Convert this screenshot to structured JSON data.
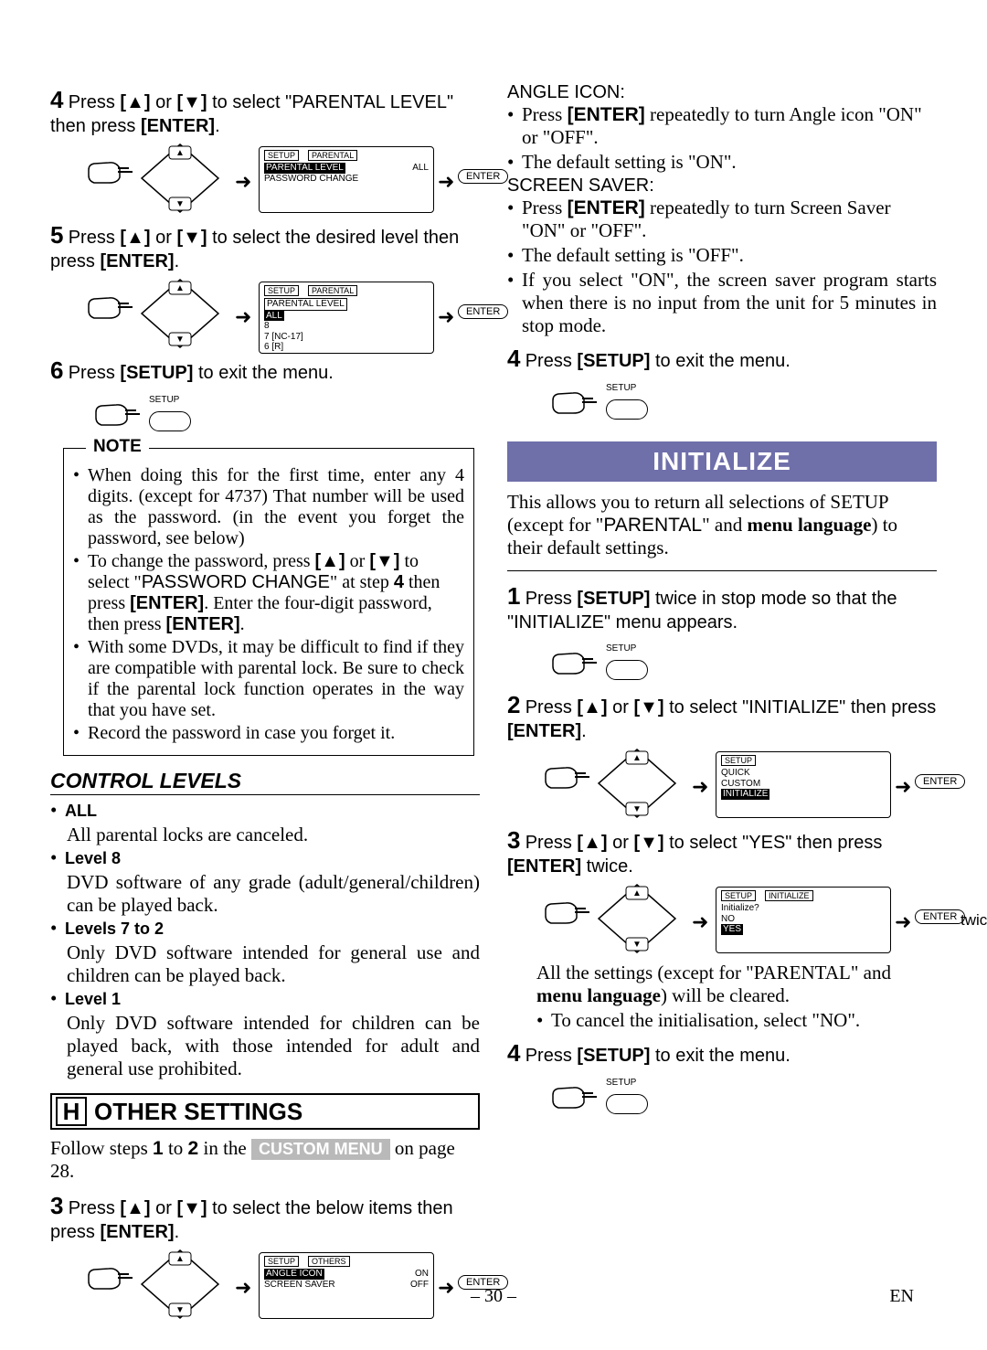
{
  "left": {
    "step4": {
      "num": "4",
      "pre": "Press ",
      "mid": " to select \"PARENTAL LEVEL\" then press ",
      "enter": "[ENTER]",
      "dot": "."
    },
    "osd4": {
      "hdr": [
        "SETUP",
        "PARENTAL"
      ],
      "rows": [
        [
          "PARENTAL LEVEL",
          "ALL"
        ],
        [
          "PASSWORD CHANGE",
          ""
        ]
      ],
      "btn": "ENTER"
    },
    "step5": {
      "num": "5",
      "pre": "Press ",
      "mid": " to select the desired level then press ",
      "enter": "[ENTER]",
      "dot": "."
    },
    "osd5": {
      "hdr": [
        "SETUP",
        "PARENTAL"
      ],
      "lines": [
        "PARENTAL LEVEL",
        "ALL",
        "8",
        "7 [NC-17]",
        "6 [R]"
      ],
      "btn": "ENTER"
    },
    "step6": {
      "num": "6",
      "text": "[SETUP]",
      "rest": " to exit the menu."
    },
    "setup_lbl": "SETUP",
    "note_title": "NOTE",
    "note_items": [
      "When doing this for the first time, enter any 4 digits. (except for 4737) That number will be used as the password. (in the event you forget the password, see below)",
      "To change the password, press [▲] or [▼] to select \"PASSWORD CHANGE\" at step 4 then press [ENTER]. Enter the four-digit password, then press [ENTER].",
      "With some DVDs, it may be difficult to find if they are compatible with parental lock. Be sure to check if the parental lock function operates in the way that you have set.",
      "Record the password in case you forget it."
    ],
    "control_heading": "CONTROL LEVELS",
    "levels": [
      {
        "name": "ALL",
        "desc": "All parental locks are canceled."
      },
      {
        "name": "Level 8",
        "desc": "DVD software of any grade (adult/general/children) can be played back."
      },
      {
        "name": "Levels 7 to 2",
        "desc": "Only DVD software intended for general use and children can be played back."
      },
      {
        "name": "Level 1",
        "desc": "Only DVD software intended for children can be played back, with those intended for adult and general use prohibited."
      }
    ],
    "other_heading": {
      "box": "H",
      "text": "OTHER SETTINGS"
    },
    "follow": {
      "a": "Follow steps ",
      "s1": "1",
      "b": " to ",
      "s2": "2",
      "c": " in the  ",
      "chip": "CUSTOM MENU",
      "d": "  on page 28."
    },
    "step3": {
      "num": "3",
      "pre": "Press ",
      "mid": " to select the below items then press ",
      "enter": "[ENTER]",
      "dot": "."
    },
    "osd3": {
      "hdr": [
        "SETUP",
        "OTHERS"
      ],
      "rows": [
        [
          "ANGLE ICON",
          "ON"
        ],
        [
          "SCREEN SAVER",
          "OFF"
        ]
      ],
      "btn": "ENTER"
    }
  },
  "right": {
    "angle": {
      "title": "ANGLE ICON:",
      "b1a": "Press ",
      "b1b": "[ENTER]",
      "b1c": " repeatedly to turn Angle icon \"ON\" or \"OFF\".",
      "b2": "The default setting is \"ON\"."
    },
    "saver": {
      "title": "SCREEN SAVER:",
      "b1a": "Press ",
      "b1b": "[ENTER]",
      "b1c": " repeatedly to turn Screen Saver \"ON\" or \"OFF\".",
      "b2": "The default setting is \"OFF\".",
      "b3": "If you select \"ON\", the screen saver program starts when there is no input from the unit for 5 minutes in stop mode."
    },
    "step4": {
      "num": "4",
      "text": "[SETUP]",
      "rest": " to exit the menu."
    },
    "init_title": "INITIALIZE",
    "init_intro": "This allows you to return all selections of SETUP (except for \"PARENTAL\" and menu language) to their default settings.",
    "istep1": {
      "num": "1",
      "a": "Press ",
      "b": "[SETUP]",
      "c": " twice in stop mode so that the \"INITIALIZE\" menu appears."
    },
    "istep2": {
      "num": "2",
      "a": "Press ",
      "b": " to select \"INITIALIZE\" then press ",
      "c": "[ENTER]",
      "d": "."
    },
    "osd2": {
      "hdr": [
        "SETUP"
      ],
      "lines": [
        "QUICK",
        "CUSTOM",
        "INITIALIZE"
      ],
      "btn": "ENTER"
    },
    "istep3": {
      "num": "3",
      "a": "Press ",
      "b": " to select \"YES\" then press ",
      "c": "[ENTER]",
      "d": " twice."
    },
    "osd3": {
      "hdr": [
        "SETUP",
        "INITIALIZE"
      ],
      "lines": [
        "Initialize?",
        "NO",
        "YES"
      ],
      "btn": "ENTER",
      "twice": "twice"
    },
    "after3": {
      "a": "All the settings (except for \"PARENTAL\" and ",
      "b": "menu language",
      "c": ") will be cleared.",
      "d": "To cancel the initialisation, select \"NO\"."
    },
    "istep4": {
      "num": "4",
      "text": "[SETUP]",
      "rest": " to exit the menu."
    }
  },
  "footer": {
    "page": "– 30 –",
    "lang": "EN"
  },
  "glyph": {
    "up": "[▲]",
    "down": "[▼]",
    "or": " or "
  }
}
